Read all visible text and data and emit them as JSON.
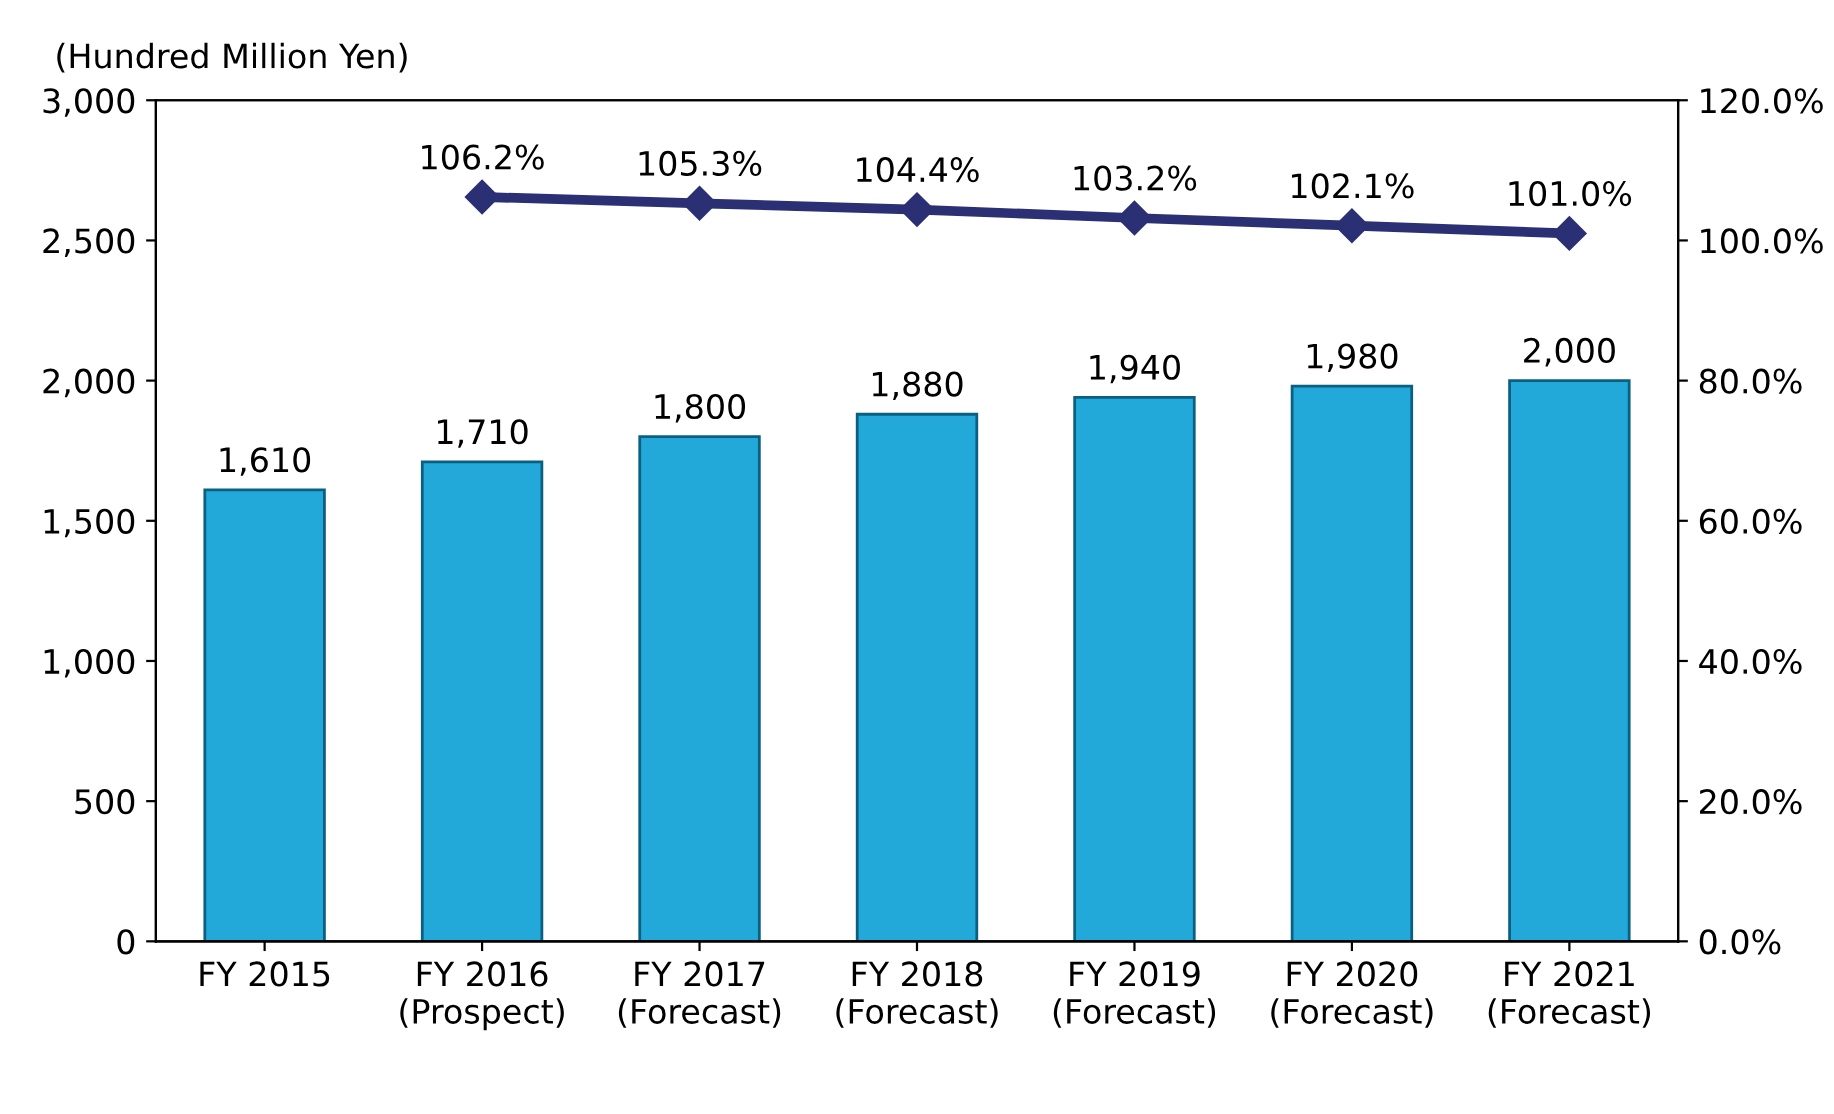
{
  "chart_data": {
    "type": "bar",
    "ylabel": "(Hundred Million Yen)",
    "categories": [
      "FY 2015",
      "FY 2016\n(Prospect)",
      "FY 2017\n(Forecast)",
      "FY 2018\n(Forecast)",
      "FY 2019\n(Forecast)",
      "FY 2020\n(Forecast)",
      "FY 2021\n(Forecast)"
    ],
    "series": [
      {
        "color": "#22a9d9",
        "values": [
          1610,
          1710,
          1800,
          1880,
          1940,
          1980,
          2000
        ],
        "value_labels": [
          "1,610",
          "1,710",
          "1,800",
          "1,880",
          "1,940",
          "1,980",
          "2,000"
        ]
      },
      {
        "type": "line",
        "axis": "y2",
        "color": "#2b2f74",
        "marker": "diamond",
        "values": [
          null,
          106.2,
          105.3,
          104.4,
          103.2,
          102.1,
          101.0
        ],
        "value_labels": [
          null,
          "106.2%",
          "105.3%",
          "104.4%",
          "103.2%",
          "102.1%",
          "101.0%"
        ]
      }
    ],
    "ylim": [
      0,
      3000
    ],
    "yticks": [
      0,
      {
        "value": 500,
        "label": "500"
      },
      {
        "value": 1000,
        "label": "1,000"
      },
      {
        "value": 1500,
        "label": "1,500"
      },
      {
        "value": 2000,
        "label": "2,000"
      },
      {
        "value": 2500,
        "label": "2,500"
      },
      {
        "value": 3000,
        "label": "3,000"
      }
    ],
    "y2lim": [
      0,
      120
    ],
    "y2ticks": [
      {
        "value": 0,
        "label": "0.0%"
      },
      {
        "value": 20,
        "label": "20.0%"
      },
      {
        "value": 40,
        "label": "40.0%"
      },
      {
        "value": 60,
        "label": "60.0%"
      },
      {
        "value": 80,
        "label": "80.0%"
      },
      {
        "value": 100,
        "label": "100.0%"
      },
      {
        "value": 120,
        "label": "120.0%"
      }
    ],
    "grid": false,
    "legend": false
  }
}
